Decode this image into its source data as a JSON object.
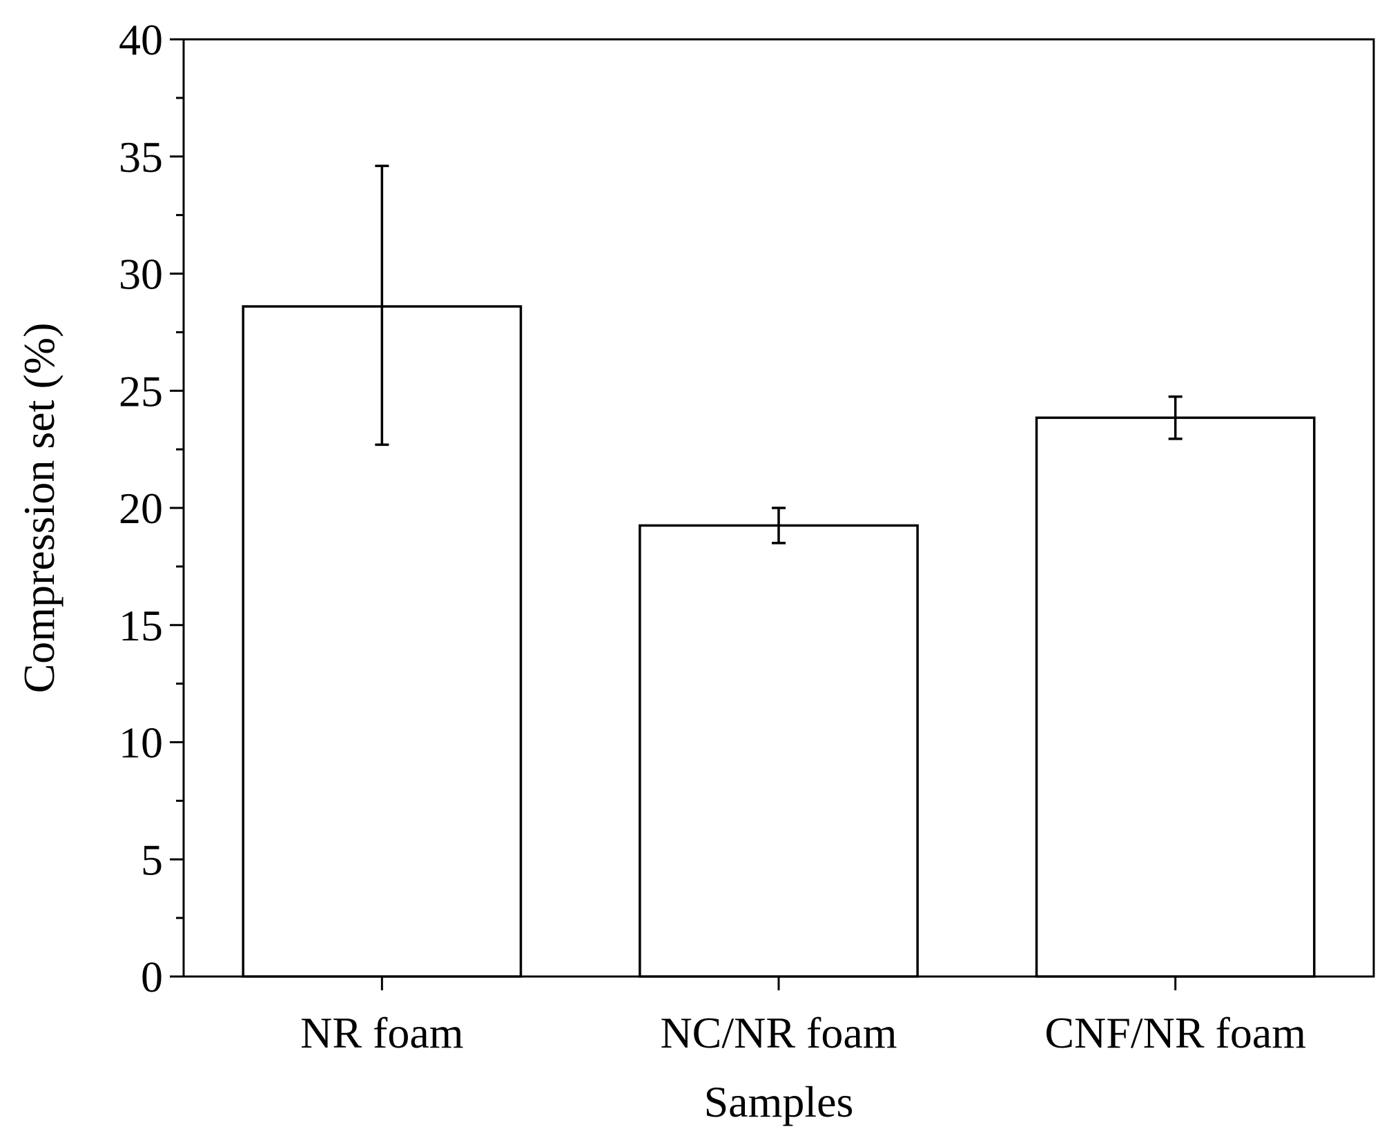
{
  "chart_data": {
    "type": "bar",
    "title": "",
    "xlabel": "Samples",
    "ylabel": "Compression set (%)",
    "ylim": [
      0,
      40
    ],
    "yticks": [
      0,
      5,
      10,
      15,
      20,
      25,
      30,
      35,
      40
    ],
    "yticks_labels": [
      "0",
      "5",
      "10",
      "15",
      "20",
      "25",
      "30",
      "35",
      "40"
    ],
    "minor_tick_step": 2.5,
    "categories": [
      "NR foam",
      "NC/NR foam",
      "CNF/NR foam"
    ],
    "values": [
      28.6,
      19.25,
      23.85
    ],
    "error_low": [
      22.7,
      18.5,
      22.95
    ],
    "error_high": [
      34.6,
      20.0,
      24.75
    ],
    "bar_fill": "#ffffff",
    "bar_stroke": "#000000",
    "grid": false,
    "legend": "none"
  }
}
